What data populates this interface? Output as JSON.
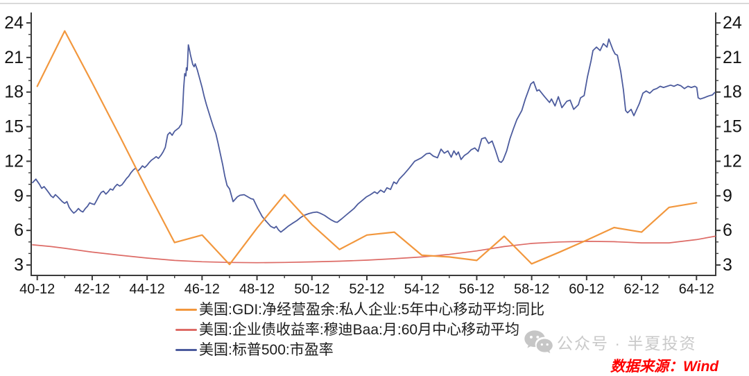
{
  "watermark": {
    "icon": "wechat-icon",
    "text": "公众号 · 半夏投资",
    "color": "#c9c9c9"
  },
  "source_note": {
    "text": "数据来源：Wind",
    "color": "#fe0000"
  },
  "chart_data": {
    "type": "line",
    "title": "",
    "xlabel": "",
    "ylabel": "",
    "grid": false,
    "legend_position": "bottom-left",
    "x_axis": {
      "range": [
        1940.7,
        1965.62
      ],
      "tick_labels": [
        "40-12",
        "42-12",
        "44-12",
        "46-12",
        "48-12",
        "50-12",
        "52-12",
        "54-12",
        "56-12",
        "58-12",
        "60-12",
        "62-12",
        "64-12"
      ],
      "first_tick_year": 1940.92,
      "major_step_years": 2,
      "minor_step_years": 1
    },
    "y_axis": {
      "min": 3,
      "max": 24,
      "major_step": 3,
      "minor_step": 1,
      "tick_labels": [
        "3",
        "6",
        "9",
        "12",
        "15",
        "18",
        "21",
        "24"
      ],
      "sides": "both"
    },
    "series": [
      {
        "id": "baa-corporate-bond-yield-ma",
        "name": "美国:企业债收益率:穆迪Baa:月:60月中心移动平均",
        "color": "#DD6B66",
        "width": 1.7,
        "data": [
          [
            1940.75,
            4.75
          ],
          [
            1941.42,
            4.6
          ],
          [
            1941.92,
            4.45
          ],
          [
            1942.92,
            4.12
          ],
          [
            1943.92,
            3.85
          ],
          [
            1944.92,
            3.6
          ],
          [
            1945.92,
            3.4
          ],
          [
            1946.92,
            3.28
          ],
          [
            1947.92,
            3.22
          ],
          [
            1948.92,
            3.2
          ],
          [
            1949.92,
            3.22
          ],
          [
            1950.92,
            3.27
          ],
          [
            1951.92,
            3.33
          ],
          [
            1952.92,
            3.42
          ],
          [
            1953.92,
            3.55
          ],
          [
            1954.92,
            3.7
          ],
          [
            1955.92,
            3.92
          ],
          [
            1956.92,
            4.22
          ],
          [
            1957.92,
            4.6
          ],
          [
            1958.92,
            4.87
          ],
          [
            1959.92,
            5.0
          ],
          [
            1960.92,
            5.05
          ],
          [
            1961.92,
            5.02
          ],
          [
            1962.92,
            4.92
          ],
          [
            1963.92,
            4.92
          ],
          [
            1964.92,
            5.2
          ],
          [
            1965.6,
            5.5
          ]
        ]
      },
      {
        "id": "sp500-pe-ratio",
        "name": "美国:标普500:市盈率",
        "color": "#4C5B9D",
        "width": 1.8,
        "data": [
          [
            1940.75,
            10.15
          ],
          [
            1940.87,
            10.45
          ],
          [
            1941.0,
            10.0
          ],
          [
            1941.08,
            9.65
          ],
          [
            1941.17,
            9.8
          ],
          [
            1941.25,
            9.55
          ],
          [
            1941.33,
            9.3
          ],
          [
            1941.42,
            9.0
          ],
          [
            1941.5,
            8.85
          ],
          [
            1941.58,
            9.1
          ],
          [
            1941.67,
            8.9
          ],
          [
            1941.75,
            8.7
          ],
          [
            1941.83,
            8.5
          ],
          [
            1941.92,
            8.35
          ],
          [
            1942.0,
            8.5
          ],
          [
            1942.08,
            8.0
          ],
          [
            1942.17,
            7.7
          ],
          [
            1942.25,
            7.5
          ],
          [
            1942.33,
            7.65
          ],
          [
            1942.42,
            7.9
          ],
          [
            1942.5,
            7.7
          ],
          [
            1942.58,
            7.6
          ],
          [
            1942.67,
            7.9
          ],
          [
            1942.75,
            8.1
          ],
          [
            1942.83,
            8.4
          ],
          [
            1942.92,
            8.3
          ],
          [
            1943.0,
            8.25
          ],
          [
            1943.08,
            8.6
          ],
          [
            1943.17,
            9.0
          ],
          [
            1943.25,
            9.3
          ],
          [
            1943.33,
            9.4
          ],
          [
            1943.42,
            9.15
          ],
          [
            1943.5,
            9.35
          ],
          [
            1943.58,
            9.6
          ],
          [
            1943.67,
            9.5
          ],
          [
            1943.75,
            9.8
          ],
          [
            1943.83,
            10.0
          ],
          [
            1943.92,
            9.85
          ],
          [
            1944.0,
            9.95
          ],
          [
            1944.08,
            10.2
          ],
          [
            1944.17,
            10.5
          ],
          [
            1944.25,
            10.7
          ],
          [
            1944.33,
            11.0
          ],
          [
            1944.42,
            11.25
          ],
          [
            1944.5,
            11.4
          ],
          [
            1944.58,
            11.15
          ],
          [
            1944.67,
            11.35
          ],
          [
            1944.75,
            11.6
          ],
          [
            1944.83,
            11.45
          ],
          [
            1944.92,
            11.65
          ],
          [
            1945.0,
            11.9
          ],
          [
            1945.08,
            12.1
          ],
          [
            1945.17,
            12.25
          ],
          [
            1945.25,
            12.4
          ],
          [
            1945.33,
            12.25
          ],
          [
            1945.42,
            12.5
          ],
          [
            1945.5,
            12.8
          ],
          [
            1945.58,
            13.2
          ],
          [
            1945.67,
            14.3
          ],
          [
            1945.75,
            14.5
          ],
          [
            1945.83,
            14.25
          ],
          [
            1945.92,
            14.6
          ],
          [
            1946.0,
            14.75
          ],
          [
            1946.08,
            14.9
          ],
          [
            1946.13,
            15.1
          ],
          [
            1946.17,
            15.2
          ],
          [
            1946.21,
            16.3
          ],
          [
            1946.25,
            18.3
          ],
          [
            1946.29,
            19.6
          ],
          [
            1946.33,
            19.4
          ],
          [
            1946.35,
            20.1
          ],
          [
            1946.38,
            19.9
          ],
          [
            1946.42,
            22.1
          ],
          [
            1946.46,
            21.7
          ],
          [
            1946.5,
            21.2
          ],
          [
            1946.58,
            20.4
          ],
          [
            1946.63,
            20.2
          ],
          [
            1946.67,
            20.45
          ],
          [
            1946.75,
            19.9
          ],
          [
            1946.83,
            19.2
          ],
          [
            1946.92,
            18.4
          ],
          [
            1947.0,
            17.6
          ],
          [
            1947.08,
            16.9
          ],
          [
            1947.17,
            16.2
          ],
          [
            1947.25,
            15.6
          ],
          [
            1947.33,
            15.0
          ],
          [
            1947.42,
            14.4
          ],
          [
            1947.5,
            13.6
          ],
          [
            1947.58,
            12.7
          ],
          [
            1947.67,
            11.7
          ],
          [
            1947.75,
            10.7
          ],
          [
            1947.83,
            9.9
          ],
          [
            1947.92,
            9.6
          ],
          [
            1948.05,
            8.5
          ],
          [
            1948.2,
            8.9
          ],
          [
            1948.3,
            9.05
          ],
          [
            1948.45,
            9.1
          ],
          [
            1948.56,
            8.95
          ],
          [
            1948.7,
            8.75
          ],
          [
            1948.79,
            8.7
          ],
          [
            1948.95,
            7.9
          ],
          [
            1949.11,
            7.2
          ],
          [
            1949.25,
            6.8
          ],
          [
            1949.42,
            6.35
          ],
          [
            1949.55,
            6.2
          ],
          [
            1949.62,
            6.35
          ],
          [
            1949.7,
            6.05
          ],
          [
            1949.79,
            5.85
          ],
          [
            1949.92,
            6.1
          ],
          [
            1950.05,
            6.35
          ],
          [
            1950.2,
            6.6
          ],
          [
            1950.37,
            6.85
          ],
          [
            1950.5,
            7.1
          ],
          [
            1950.63,
            7.3
          ],
          [
            1950.8,
            7.45
          ],
          [
            1950.95,
            7.55
          ],
          [
            1951.1,
            7.6
          ],
          [
            1951.21,
            7.5
          ],
          [
            1951.38,
            7.3
          ],
          [
            1951.5,
            7.1
          ],
          [
            1951.63,
            6.9
          ],
          [
            1951.75,
            6.75
          ],
          [
            1951.84,
            6.7
          ],
          [
            1952.0,
            7.0
          ],
          [
            1952.15,
            7.3
          ],
          [
            1952.3,
            7.6
          ],
          [
            1952.45,
            7.9
          ],
          [
            1952.6,
            8.3
          ],
          [
            1952.75,
            8.6
          ],
          [
            1952.9,
            8.9
          ],
          [
            1953.05,
            9.1
          ],
          [
            1953.2,
            9.35
          ],
          [
            1953.3,
            9.2
          ],
          [
            1953.42,
            9.5
          ],
          [
            1953.55,
            9.3
          ],
          [
            1953.65,
            9.7
          ],
          [
            1953.78,
            9.55
          ],
          [
            1953.9,
            10.2
          ],
          [
            1954.0,
            10.05
          ],
          [
            1954.1,
            10.45
          ],
          [
            1954.28,
            10.9
          ],
          [
            1954.46,
            11.4
          ],
          [
            1954.66,
            12.0
          ],
          [
            1954.91,
            12.3
          ],
          [
            1955.09,
            12.65
          ],
          [
            1955.21,
            12.7
          ],
          [
            1955.34,
            12.45
          ],
          [
            1955.49,
            12.3
          ],
          [
            1955.62,
            13.05
          ],
          [
            1955.74,
            12.7
          ],
          [
            1955.87,
            12.9
          ],
          [
            1955.99,
            12.35
          ],
          [
            1956.09,
            12.9
          ],
          [
            1956.18,
            12.55
          ],
          [
            1956.25,
            12.8
          ],
          [
            1956.35,
            12.15
          ],
          [
            1956.47,
            12.5
          ],
          [
            1956.6,
            12.7
          ],
          [
            1956.72,
            13.0
          ],
          [
            1956.85,
            13.15
          ],
          [
            1956.97,
            12.85
          ],
          [
            1957.1,
            13.95
          ],
          [
            1957.23,
            14.05
          ],
          [
            1957.35,
            13.55
          ],
          [
            1957.48,
            13.75
          ],
          [
            1957.6,
            12.95
          ],
          [
            1957.73,
            12.0
          ],
          [
            1957.81,
            11.9
          ],
          [
            1957.88,
            12.1
          ],
          [
            1958.01,
            12.9
          ],
          [
            1958.13,
            13.95
          ],
          [
            1958.26,
            14.85
          ],
          [
            1958.38,
            15.6
          ],
          [
            1958.56,
            16.4
          ],
          [
            1958.69,
            17.4
          ],
          [
            1958.89,
            18.7
          ],
          [
            1958.99,
            18.9
          ],
          [
            1959.11,
            18.1
          ],
          [
            1959.19,
            18.2
          ],
          [
            1959.39,
            17.6
          ],
          [
            1959.57,
            17.1
          ],
          [
            1959.64,
            17.4
          ],
          [
            1959.77,
            16.8
          ],
          [
            1959.89,
            17.6
          ],
          [
            1960.02,
            16.65
          ],
          [
            1960.2,
            17.2
          ],
          [
            1960.32,
            17.3
          ],
          [
            1960.45,
            16.5
          ],
          [
            1960.62,
            16.9
          ],
          [
            1960.7,
            17.5
          ],
          [
            1960.83,
            17.7
          ],
          [
            1960.95,
            19.3
          ],
          [
            1961.08,
            20.7
          ],
          [
            1961.15,
            21.6
          ],
          [
            1961.28,
            21.9
          ],
          [
            1961.41,
            21.6
          ],
          [
            1961.53,
            22.2
          ],
          [
            1961.66,
            21.9
          ],
          [
            1961.73,
            22.6
          ],
          [
            1961.88,
            21.65
          ],
          [
            1961.96,
            21.3
          ],
          [
            1962.04,
            21.2
          ],
          [
            1962.16,
            19.8
          ],
          [
            1962.26,
            18.2
          ],
          [
            1962.34,
            16.4
          ],
          [
            1962.41,
            16.2
          ],
          [
            1962.54,
            16.5
          ],
          [
            1962.64,
            15.95
          ],
          [
            1962.84,
            17.0
          ],
          [
            1962.97,
            17.9
          ],
          [
            1963.09,
            18.1
          ],
          [
            1963.22,
            17.9
          ],
          [
            1963.35,
            18.2
          ],
          [
            1963.47,
            18.3
          ],
          [
            1963.6,
            18.5
          ],
          [
            1963.72,
            18.4
          ],
          [
            1963.85,
            18.5
          ],
          [
            1963.98,
            18.6
          ],
          [
            1964.1,
            18.5
          ],
          [
            1964.23,
            18.65
          ],
          [
            1964.35,
            18.55
          ],
          [
            1964.48,
            18.3
          ],
          [
            1964.61,
            18.5
          ],
          [
            1964.73,
            18.4
          ],
          [
            1964.86,
            18.5
          ],
          [
            1964.93,
            18.4
          ],
          [
            1964.98,
            17.5
          ],
          [
            1965.06,
            17.4
          ],
          [
            1965.19,
            17.5
          ],
          [
            1965.29,
            17.6
          ],
          [
            1965.41,
            17.7
          ],
          [
            1965.5,
            17.75
          ],
          [
            1965.58,
            17.95
          ]
        ]
      },
      {
        "id": "gdi-net-operating-surplus-yoy",
        "name": "美国:GDI:净经营盈余:私人企业:5年中心移动平均:同比",
        "color": "#F2973D",
        "width": 2.2,
        "data": [
          [
            1940.92,
            18.5
          ],
          [
            1941.92,
            23.3
          ],
          [
            1942.92,
            18.8
          ],
          [
            1943.92,
            14.2
          ],
          [
            1944.92,
            9.5
          ],
          [
            1945.92,
            4.95
          ],
          [
            1946.92,
            5.6
          ],
          [
            1947.92,
            3.05
          ],
          [
            1948.92,
            6.2
          ],
          [
            1949.92,
            9.1
          ],
          [
            1950.92,
            6.5
          ],
          [
            1951.92,
            4.35
          ],
          [
            1952.92,
            5.6
          ],
          [
            1953.92,
            5.85
          ],
          [
            1954.92,
            3.85
          ],
          [
            1955.92,
            3.7
          ],
          [
            1956.92,
            3.4
          ],
          [
            1957.92,
            5.5
          ],
          [
            1958.92,
            3.1
          ],
          [
            1959.92,
            4.1
          ],
          [
            1960.92,
            5.15
          ],
          [
            1961.92,
            6.25
          ],
          [
            1962.92,
            5.85
          ],
          [
            1963.92,
            8.0
          ],
          [
            1964.92,
            8.4
          ]
        ]
      }
    ]
  }
}
